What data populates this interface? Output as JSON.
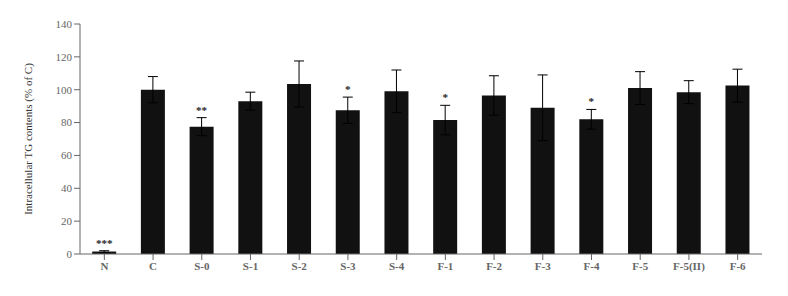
{
  "chart_data": {
    "type": "bar",
    "categories": [
      "N",
      "C",
      "S-0",
      "S-1",
      "S-2",
      "S-3",
      "S-4",
      "F-1",
      "F-2",
      "F-3",
      "F-4",
      "F-5",
      "F-5(II)",
      "F-6"
    ],
    "values": [
      1.5,
      100.0,
      77.5,
      93.0,
      103.5,
      87.5,
      99.0,
      81.5,
      96.5,
      89.0,
      82.0,
      101.0,
      98.5,
      102.5
    ],
    "errors": [
      0.5,
      8.0,
      5.5,
      5.5,
      14.0,
      8.0,
      13.0,
      9.0,
      12.0,
      20.0,
      6.0,
      10.0,
      7.0,
      10.0
    ],
    "color": "#111111",
    "ylabel": "Intracellular  TG contents (% of C)",
    "ylim": [
      0,
      140
    ],
    "yticks": [
      0,
      20,
      40,
      60,
      80,
      100,
      120,
      140
    ],
    "grid": false,
    "annotations": [
      {
        "category": "N",
        "text": "***"
      },
      {
        "category": "S-0",
        "text": "**"
      },
      {
        "category": "S-3",
        "text": "*"
      },
      {
        "category": "F-1",
        "text": "*"
      },
      {
        "category": "F-4",
        "text": "*"
      }
    ]
  }
}
